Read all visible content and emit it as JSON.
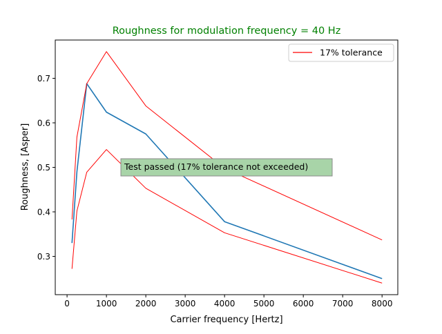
{
  "chart_data": {
    "type": "line",
    "title": "Roughness for modulation frequency = 40 Hz",
    "xlabel": "Carrier frequency [Hertz]",
    "ylabel": "Roughness, [Asper]",
    "xlim": [
      -300,
      8400
    ],
    "ylim": [
      0.214,
      0.786
    ],
    "xticks": [
      0,
      1000,
      2000,
      3000,
      4000,
      5000,
      6000,
      7000,
      8000
    ],
    "yticks": [
      0.3,
      0.4,
      0.5,
      0.6,
      0.7
    ],
    "xtick_labels": [
      "0",
      "1000",
      "2000",
      "3000",
      "4000",
      "5000",
      "6000",
      "7000",
      "8000"
    ],
    "ytick_labels": [
      "0.3",
      "0.4",
      "0.5",
      "0.6",
      "0.7"
    ],
    "grid": false,
    "legend": {
      "placement": "top-right",
      "entries": [
        "17% tolerance"
      ]
    },
    "annotation": "Test passed (17% tolerance not exceeded)",
    "colors": {
      "title": "#008000",
      "measured": "#1f77b4",
      "tolerance": "#ff0000",
      "annotation_bg": "#a8d4a8",
      "annotation_border": "#8a8a8a"
    },
    "series": [
      {
        "color": "#1f77b4",
        "x": [
          125,
          250,
          500,
          1000,
          2000,
          4000,
          8000
        ],
        "y": [
          0.33,
          0.49,
          0.688,
          0.624,
          0.575,
          0.378,
          0.25
        ]
      },
      {
        "name": "17% tolerance",
        "color": "#ff0000",
        "x": [
          125,
          250,
          500,
          1000,
          2000,
          4000,
          8000
        ],
        "y": [
          0.383,
          0.568,
          0.688,
          0.76,
          0.638,
          0.498,
          0.337
        ]
      },
      {
        "color": "#ff0000",
        "x": [
          125,
          250,
          500,
          1000,
          2000,
          4000,
          8000
        ],
        "y": [
          0.272,
          0.402,
          0.489,
          0.54,
          0.453,
          0.353,
          0.24
        ]
      }
    ]
  }
}
